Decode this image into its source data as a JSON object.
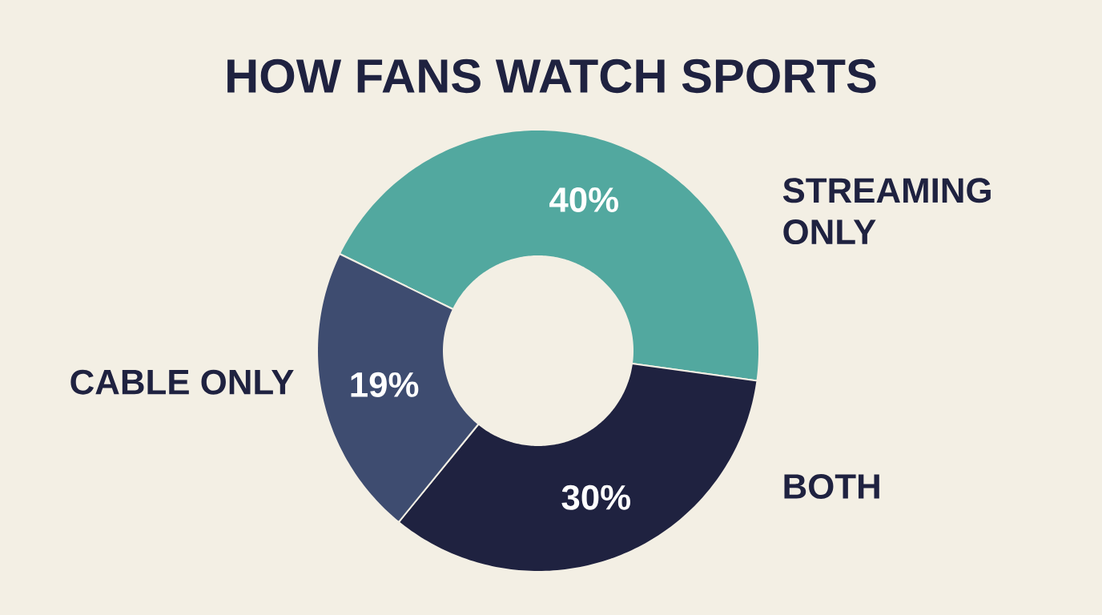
{
  "chart_data": {
    "type": "donut",
    "title": "HOW FANS WATCH SPORTS",
    "categories": [
      "STREAMING ONLY",
      "BOTH",
      "CABLE ONLY"
    ],
    "values": [
      40,
      30,
      19
    ],
    "value_labels": [
      "40%",
      "30%",
      "19%"
    ],
    "colors": [
      "#52a89f",
      "#1f2240",
      "#3e4c70"
    ]
  }
}
